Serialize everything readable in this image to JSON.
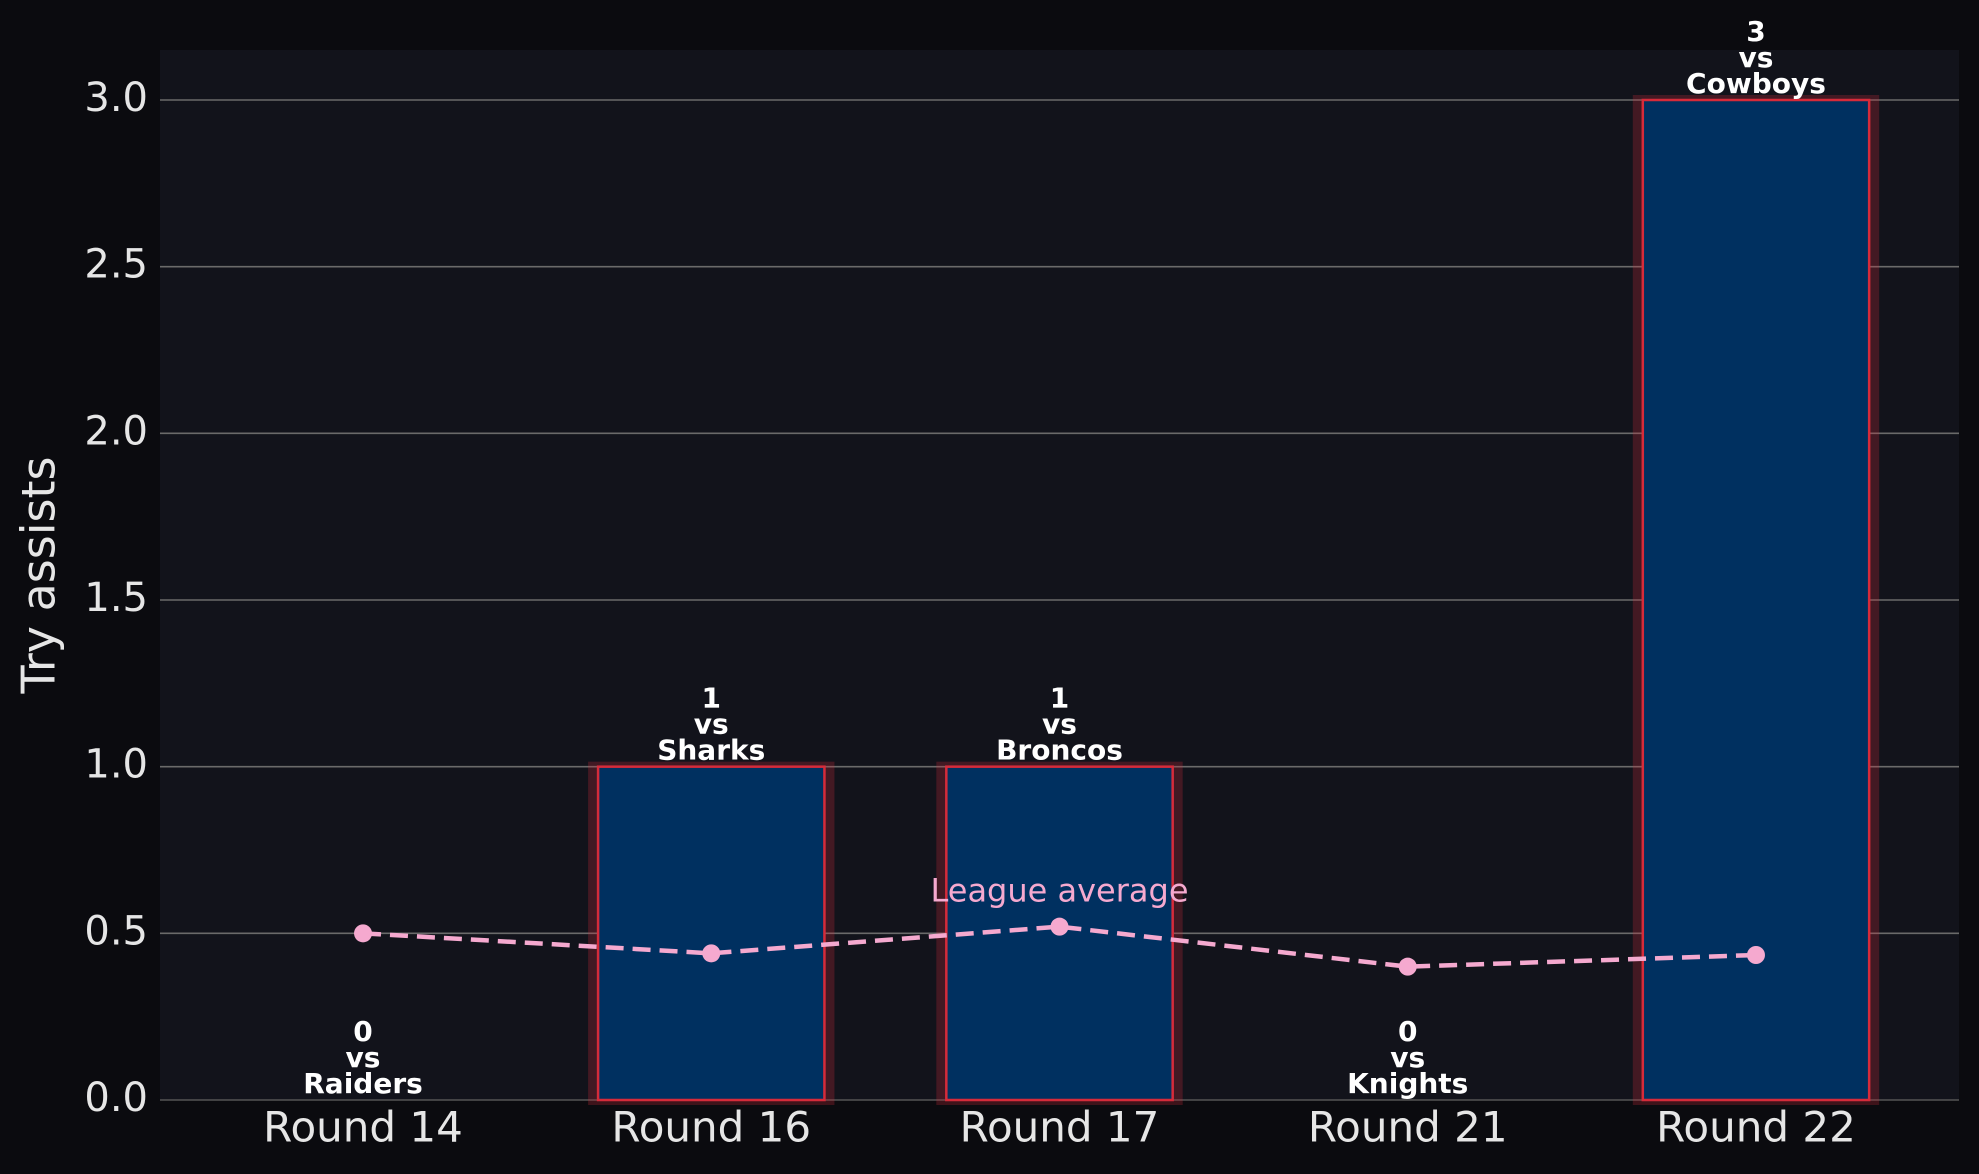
{
  "chart_data": {
    "type": "bar",
    "ylabel": "Try assists",
    "categories": [
      "Round 14",
      "Round 16",
      "Round 17",
      "Round 21",
      "Round 22"
    ],
    "values": [
      0,
      1,
      1,
      0,
      3
    ],
    "opponents": [
      "Raiders",
      "Sharks",
      "Broncos",
      "Knights",
      "Cowboys"
    ],
    "connector": "vs",
    "color": "#003060",
    "edge_color": "#d62b3a",
    "ylim": [
      0,
      3.15
    ],
    "yticks": [
      {
        "value": 0,
        "label": "0.0"
      },
      0.5,
      {
        "value": 1,
        "label": "1.0"
      },
      1.5,
      {
        "value": 2,
        "label": "2.0"
      },
      2.5,
      {
        "value": 3,
        "label": "3.0"
      }
    ],
    "grid": true,
    "line": {
      "name": "League average",
      "color": "#f5a9cf",
      "values": [
        0.5,
        0.44,
        0.52,
        0.4,
        0.435
      ],
      "label_at": 2
    }
  }
}
